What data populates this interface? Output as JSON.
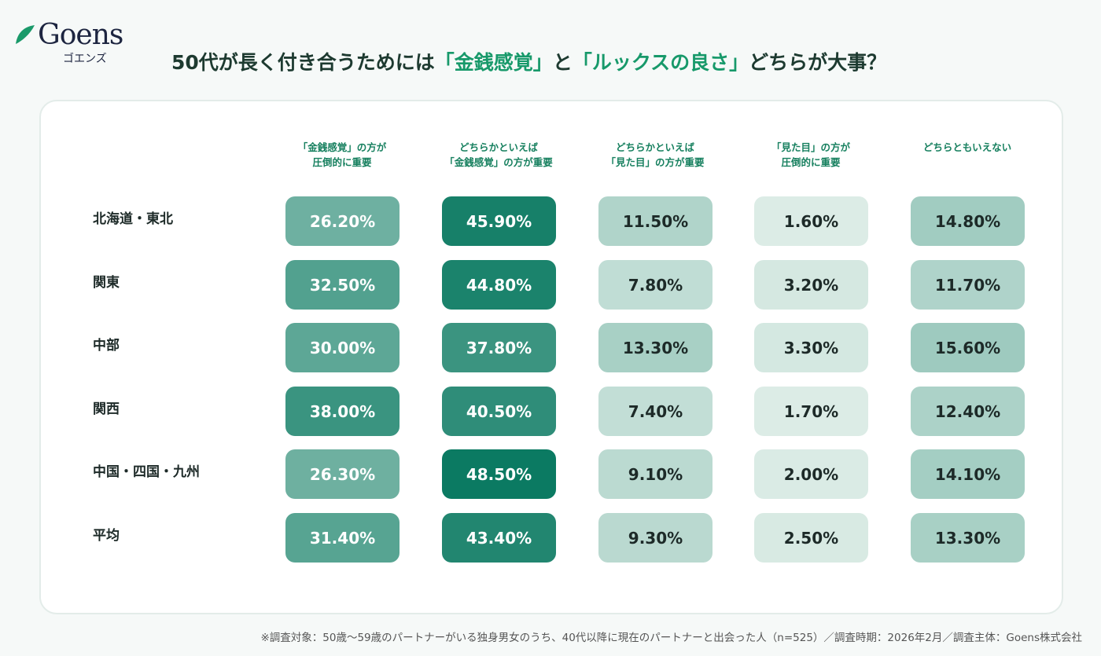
{
  "logo": {
    "word": "Goens",
    "kana": "ゴエンズ"
  },
  "title": {
    "p1": "50代が長く付き合うためには",
    "p2": "「金銭感覚」",
    "p3": "と",
    "p4": "「ルックスの良さ」",
    "p5": "どちらが大事？"
  },
  "colors": {
    "accent": "#17996a",
    "dark_cell": "#0b7a62",
    "light_cell": "#dcece6"
  },
  "chart_data": {
    "type": "heatmap",
    "columns": [
      "「金銭感覚」の方が\n圧倒的に重要",
      "どちらかといえば\n「金銭感覚」の方が重要",
      "どちらかといえば\n「見た目」の方が重要",
      "「見た目」の方が\n圧倒的に重要",
      "どちらともいえない"
    ],
    "rows": [
      "北海道・東北",
      "関東",
      "中部",
      "関西",
      "中国・四国・九州",
      "平均"
    ],
    "values": [
      [
        26.2,
        45.9,
        11.5,
        1.6,
        14.8
      ],
      [
        32.5,
        44.8,
        7.8,
        3.2,
        11.7
      ],
      [
        30.0,
        37.8,
        13.3,
        3.3,
        15.6
      ],
      [
        38.0,
        40.5,
        7.4,
        1.7,
        12.4
      ],
      [
        26.3,
        48.5,
        9.1,
        2.0,
        14.1
      ],
      [
        31.4,
        43.4,
        9.3,
        2.5,
        13.3
      ]
    ],
    "labels": [
      [
        "26.20%",
        "45.90%",
        "11.50%",
        "1.60%",
        "14.80%"
      ],
      [
        "32.50%",
        "44.80%",
        "7.80%",
        "3.20%",
        "11.70%"
      ],
      [
        "30.00%",
        "37.80%",
        "13.30%",
        "3.30%",
        "15.60%"
      ],
      [
        "38.00%",
        "40.50%",
        "7.40%",
        "1.70%",
        "12.40%"
      ],
      [
        "26.30%",
        "48.50%",
        "9.10%",
        "2.00%",
        "14.10%"
      ],
      [
        "31.40%",
        "43.40%",
        "9.30%",
        "2.50%",
        "13.30%"
      ]
    ],
    "unit": "%"
  },
  "footnote": "※調査対象：50歳〜59歳のパートナーがいる独身男女のうち、40代以降に現在のパートナーと出会った人（n=525）／調査時期：2026年2月／調査主体：Goens株式会社"
}
